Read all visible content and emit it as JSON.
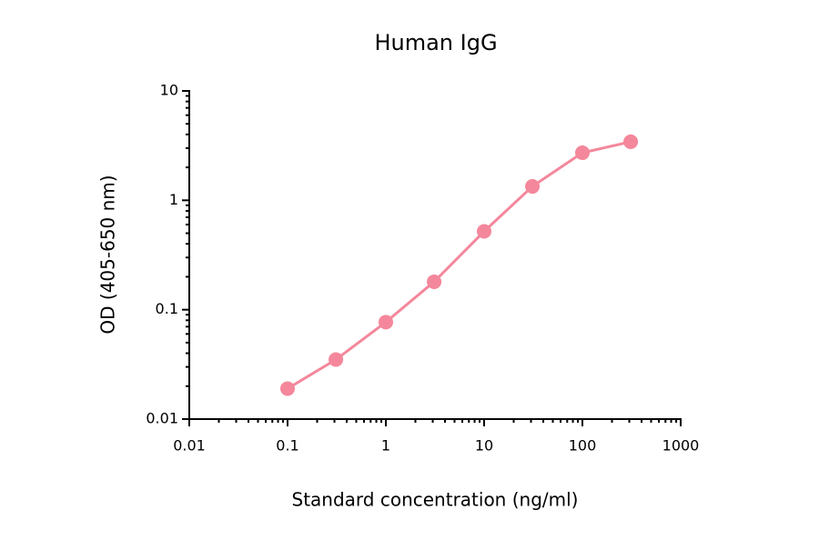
{
  "chart_data": {
    "type": "line",
    "title": "Human IgG",
    "x_label": "Standard concentration (ng/ml)",
    "y_label": "OD (405-650 nm)",
    "x": [
      0.1,
      0.31,
      1,
      3.1,
      10,
      31,
      100,
      310
    ],
    "series": [
      {
        "name": "Human IgG",
        "color": "#f4879b",
        "values": [
          0.019,
          0.035,
          0.077,
          0.18,
          0.52,
          1.34,
          2.72,
          3.43
        ]
      }
    ],
    "xlim": [
      0.01,
      1000
    ],
    "ylim": [
      0.01,
      10
    ],
    "xticks": [
      0.01,
      0.1,
      1,
      10,
      100,
      1000
    ],
    "yticks": [
      0.01,
      0.1,
      1,
      10
    ],
    "log_x": true,
    "log_y": true,
    "minor_ticks": true,
    "grid": false
  }
}
